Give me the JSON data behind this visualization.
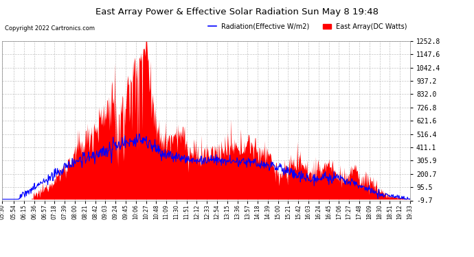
{
  "title": "East Array Power & Effective Solar Radiation Sun May 8 19:48",
  "copyright": "Copyright 2022 Cartronics.com",
  "legend_radiation": "Radiation(Effective W/m2)",
  "legend_east": "East Array(DC Watts)",
  "ylabel_right_values": [
    -9.7,
    95.5,
    200.7,
    305.9,
    411.1,
    516.4,
    621.6,
    726.8,
    832.0,
    937.2,
    1042.4,
    1147.6,
    1252.8
  ],
  "ylim_min": -9.7,
  "ylim_max": 1252.8,
  "background_color": "#ffffff",
  "plot_bg_color": "#ffffff",
  "grid_color": "#aaaaaa",
  "red_color": "#ff0000",
  "blue_color": "#0000ff",
  "title_color": "#000000",
  "copyright_color": "#000000",
  "x_tick_labels": [
    "05:30",
    "05:54",
    "06:15",
    "06:36",
    "06:57",
    "07:18",
    "07:39",
    "08:00",
    "08:21",
    "08:42",
    "09:03",
    "09:24",
    "09:45",
    "10:06",
    "10:27",
    "10:48",
    "11:09",
    "11:30",
    "11:51",
    "12:12",
    "12:33",
    "12:54",
    "13:15",
    "13:36",
    "13:57",
    "14:18",
    "14:39",
    "15:00",
    "15:21",
    "15:42",
    "16:03",
    "16:24",
    "16:45",
    "17:06",
    "17:27",
    "17:48",
    "18:09",
    "18:30",
    "18:51",
    "19:12",
    "19:33"
  ]
}
